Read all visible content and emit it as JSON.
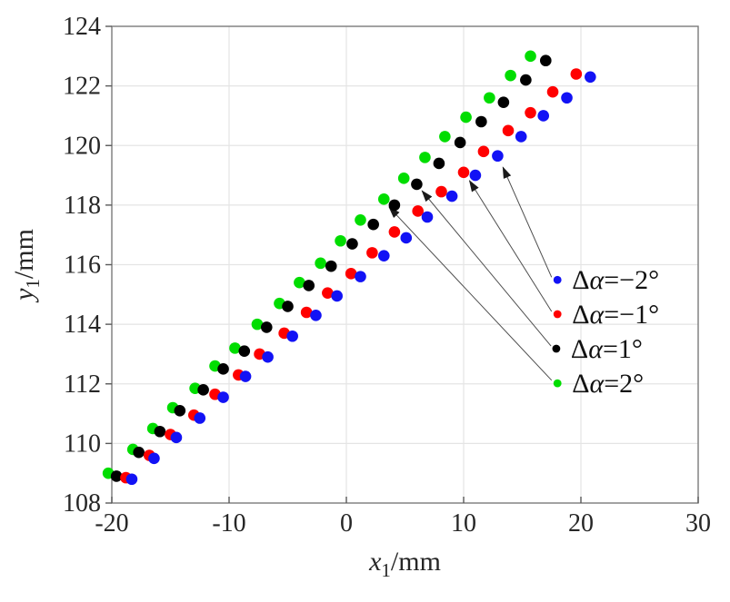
{
  "figure": {
    "background": "#ffffff"
  },
  "chart_data": {
    "type": "scatter",
    "title": "",
    "xlabel": {
      "var": "x",
      "sub": "1",
      "unit": "/mm"
    },
    "ylabel": {
      "var": "y",
      "sub": "1",
      "unit": "/mm"
    },
    "xlim": [
      -20,
      30
    ],
    "ylim": [
      108,
      124
    ],
    "xticks": [
      -20,
      -10,
      0,
      10,
      20,
      30
    ],
    "xtick_labels": [
      "-20",
      "-10",
      "0",
      "10",
      "20",
      "30"
    ],
    "yticks": [
      108,
      110,
      112,
      114,
      116,
      118,
      120,
      122,
      124
    ],
    "ytick_labels": [
      "108",
      "110",
      "112",
      "114",
      "116",
      "118",
      "120",
      "122",
      "124"
    ],
    "grid": true,
    "grid_color": "#e4e4e4",
    "frame_color": "#7a7a7a",
    "tick_color": "#5a5a5a",
    "arrow_color": "#4d4d4d",
    "marker_radius": 6.3,
    "legend_marker_radius": 4.4,
    "series": [
      {
        "name": "Δα=2°",
        "color": "#00dd00",
        "points": [
          [
            -20.3,
            109.0
          ],
          [
            -18.2,
            109.8
          ],
          [
            -16.5,
            110.5
          ],
          [
            -14.8,
            111.2
          ],
          [
            -12.9,
            111.85
          ],
          [
            -11.2,
            112.6
          ],
          [
            -9.5,
            113.2
          ],
          [
            -7.6,
            114.0
          ],
          [
            -5.7,
            114.7
          ],
          [
            -4.0,
            115.4
          ],
          [
            -2.2,
            116.05
          ],
          [
            -0.5,
            116.8
          ],
          [
            1.2,
            117.5
          ],
          [
            3.2,
            118.2
          ],
          [
            4.9,
            118.9
          ],
          [
            6.7,
            119.6
          ],
          [
            8.4,
            120.3
          ],
          [
            10.2,
            120.95
          ],
          [
            12.2,
            121.6
          ],
          [
            14.0,
            122.35
          ],
          [
            15.7,
            123.0
          ]
        ]
      },
      {
        "name": "Δα=1°",
        "color": "#000000",
        "points": [
          [
            -19.6,
            108.9
          ],
          [
            -17.7,
            109.7
          ],
          [
            -15.9,
            110.4
          ],
          [
            -14.2,
            111.1
          ],
          [
            -12.2,
            111.8
          ],
          [
            -10.5,
            112.5
          ],
          [
            -8.7,
            113.1
          ],
          [
            -6.8,
            113.9
          ],
          [
            -5.0,
            114.6
          ],
          [
            -3.2,
            115.3
          ],
          [
            -1.3,
            115.95
          ],
          [
            0.5,
            116.7
          ],
          [
            2.3,
            117.35
          ],
          [
            4.1,
            118.0
          ],
          [
            6.0,
            118.7
          ],
          [
            7.9,
            119.4
          ],
          [
            9.7,
            120.1
          ],
          [
            11.5,
            120.8
          ],
          [
            13.4,
            121.45
          ],
          [
            15.3,
            122.2
          ],
          [
            17.0,
            122.85
          ]
        ]
      },
      {
        "name": "Δα=−1°",
        "color": "#ff0000",
        "points": [
          [
            -18.8,
            108.85
          ],
          [
            -16.8,
            109.6
          ],
          [
            -15.0,
            110.3
          ],
          [
            -13.0,
            110.95
          ],
          [
            -11.2,
            111.65
          ],
          [
            -9.2,
            112.3
          ],
          [
            -7.4,
            113.0
          ],
          [
            -5.3,
            113.7
          ],
          [
            -3.4,
            114.4
          ],
          [
            -1.6,
            115.05
          ],
          [
            0.4,
            115.7
          ],
          [
            2.2,
            116.4
          ],
          [
            4.1,
            117.1
          ],
          [
            6.1,
            117.8
          ],
          [
            8.1,
            118.45
          ],
          [
            10.0,
            119.1
          ],
          [
            11.7,
            119.8
          ],
          [
            13.8,
            120.5
          ],
          [
            15.7,
            121.1
          ],
          [
            17.6,
            121.8
          ],
          [
            19.6,
            122.4
          ]
        ]
      },
      {
        "name": "Δα=−2°",
        "color": "#1212f5",
        "points": [
          [
            -18.3,
            108.8
          ],
          [
            -16.4,
            109.5
          ],
          [
            -14.5,
            110.2
          ],
          [
            -12.5,
            110.85
          ],
          [
            -10.5,
            111.55
          ],
          [
            -8.6,
            112.25
          ],
          [
            -6.7,
            112.9
          ],
          [
            -4.6,
            113.6
          ],
          [
            -2.6,
            114.3
          ],
          [
            -0.8,
            114.95
          ],
          [
            1.2,
            115.6
          ],
          [
            3.2,
            116.3
          ],
          [
            5.1,
            116.9
          ],
          [
            6.9,
            117.6
          ],
          [
            9.0,
            118.3
          ],
          [
            11.0,
            119.0
          ],
          [
            12.9,
            119.65
          ],
          [
            14.9,
            120.3
          ],
          [
            16.8,
            121.0
          ],
          [
            18.8,
            121.6
          ],
          [
            20.8,
            122.3
          ]
        ]
      }
    ],
    "legend": {
      "position": "right-middle",
      "entries": [
        {
          "series": "Δα=−2°",
          "color": "#1212f5",
          "dot": [
            18.0,
            115.49
          ],
          "delta": "Δ",
          "alpha": "α",
          "suffix": "=−2°"
        },
        {
          "series": "Δα=−1°",
          "color": "#ff0000",
          "dot": [
            18.0,
            114.34
          ],
          "delta": "Δ",
          "alpha": "α",
          "suffix": "=−1°"
        },
        {
          "series": "Δα=1°",
          "color": "#000000",
          "dot": [
            17.9,
            113.18
          ],
          "delta": "Δ",
          "alpha": "α",
          "suffix": "=1°"
        },
        {
          "series": "Δα=2°",
          "color": "#00dd00",
          "dot": [
            18.0,
            112.02
          ],
          "delta": "Δ",
          "alpha": "α",
          "suffix": "=2°"
        }
      ]
    },
    "annotation_arrows": [
      {
        "points_to": "Δα=−2°",
        "from": [
          17.5,
          115.58
        ],
        "to": [
          13.35,
          119.27
        ]
      },
      {
        "points_to": "Δα=−1°",
        "from": [
          17.5,
          114.43
        ],
        "to": [
          10.5,
          118.82
        ]
      },
      {
        "points_to": "Δα=1°",
        "from": [
          17.45,
          113.27
        ],
        "to": [
          6.45,
          118.48
        ]
      },
      {
        "points_to": "Δα=2°",
        "from": [
          17.5,
          112.12
        ],
        "to": [
          3.65,
          117.93
        ]
      }
    ]
  }
}
